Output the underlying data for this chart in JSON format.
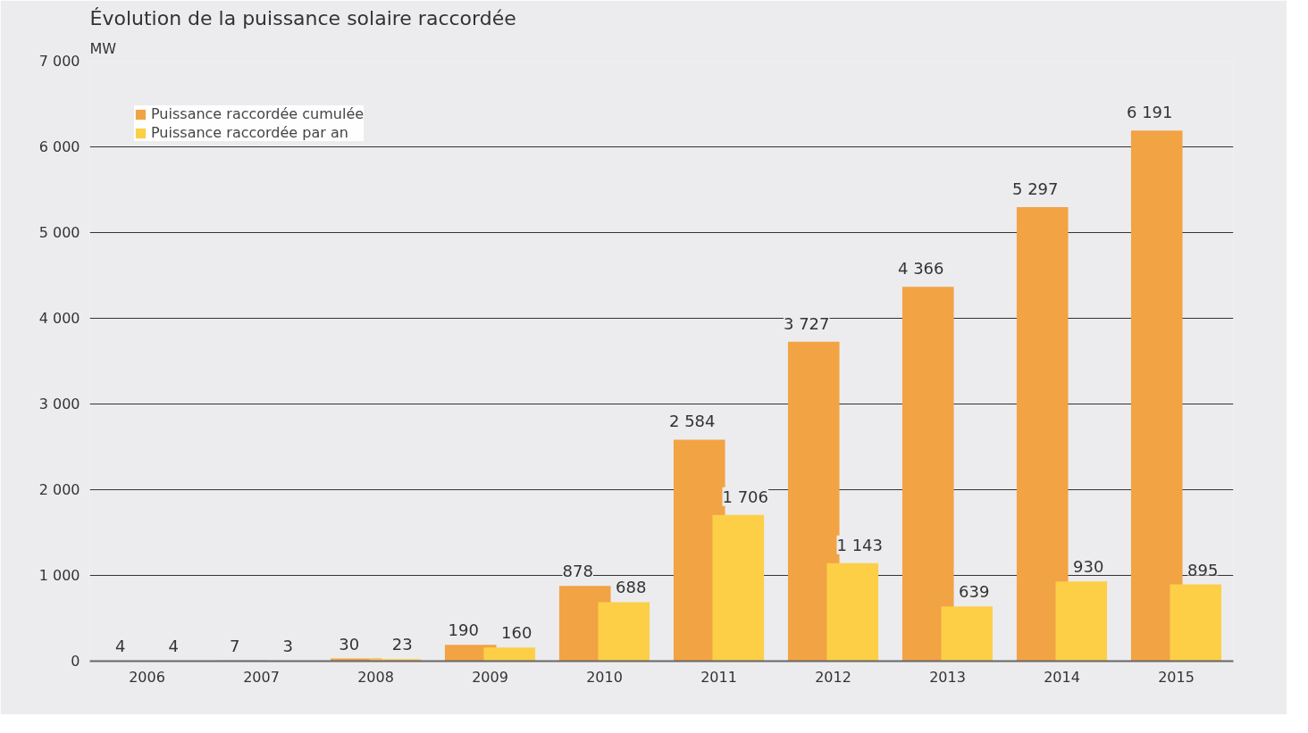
{
  "chart_data": {
    "type": "bar",
    "title": "Évolution de la puissance solaire raccordée",
    "ylabel": "MW",
    "categories": [
      "2006",
      "2007",
      "2008",
      "2009",
      "2010",
      "2011",
      "2012",
      "2013",
      "2014",
      "2015"
    ],
    "series": [
      {
        "name": "Puissance raccordée cumulée",
        "color": "#f2a344",
        "values": [
          4,
          7,
          30,
          190,
          878,
          2584,
          3727,
          4366,
          5297,
          6191
        ],
        "value_labels": [
          "4",
          "7",
          "30",
          "190",
          "878",
          "2 584",
          "3 727",
          "4 366",
          "5 297",
          "6 191"
        ]
      },
      {
        "name": "Puissance raccordée par an",
        "color": "#fccf47",
        "values": [
          4,
          3,
          23,
          160,
          688,
          1706,
          1143,
          639,
          930,
          895
        ],
        "value_labels": [
          "4",
          "3",
          "23",
          "160",
          "688",
          "1 706",
          "1 143",
          "639",
          "930",
          "895"
        ]
      }
    ],
    "ylim": [
      0,
      7000
    ],
    "yticks": [
      {
        "value": 0,
        "label": "0"
      },
      {
        "value": 1000,
        "label": "1 000"
      },
      {
        "value": 2000,
        "label": "2 000"
      },
      {
        "value": 3000,
        "label": "3 000"
      },
      {
        "value": 4000,
        "label": "4 000"
      },
      {
        "value": 5000,
        "label": "5 000"
      },
      {
        "value": 6000,
        "label": "6 000"
      },
      {
        "value": 7000,
        "label": "7 000"
      }
    ],
    "grid": "y",
    "legend": "top left"
  }
}
